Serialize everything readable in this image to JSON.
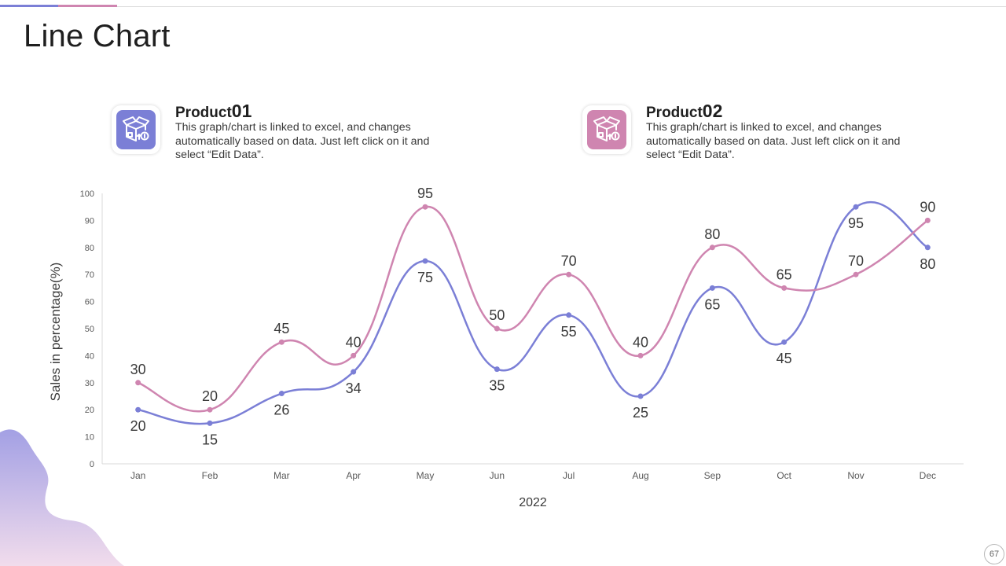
{
  "page": {
    "title": "Line Chart",
    "page_number": "67"
  },
  "products": [
    {
      "name": "Product",
      "number": "01",
      "color": "#7b7fd6",
      "icon": "box-money-icon",
      "description": "This graph/chart is linked to excel, and changes automatically based on data. Just left click on it and select “Edit Data”."
    },
    {
      "name": "Product",
      "number": "02",
      "color": "#cf85b0",
      "icon": "box-money-icon",
      "description": "This graph/chart is linked to excel, and changes automatically based on data. Just left click on it and select “Edit Data”."
    }
  ],
  "chart_data": {
    "type": "line",
    "title": "",
    "xlabel": "2022",
    "ylabel": "Sales in percentage(%)",
    "ylim": [
      0,
      100
    ],
    "yticks": [
      0,
      10,
      20,
      30,
      40,
      50,
      60,
      70,
      80,
      90,
      100
    ],
    "categories": [
      "Jan",
      "Feb",
      "Mar",
      "Apr",
      "May",
      "Jun",
      "Jul",
      "Aug",
      "Sep",
      "Oct",
      "Nov",
      "Dec"
    ],
    "smooth": true,
    "series": [
      {
        "name": "Product 01",
        "color": "#7b7fd6",
        "label_position": "below",
        "values": [
          20,
          15,
          26,
          34,
          75,
          35,
          55,
          25,
          65,
          45,
          95,
          80
        ]
      },
      {
        "name": "Product 02",
        "color": "#cf85b0",
        "label_position": "above",
        "values": [
          30,
          20,
          45,
          40,
          95,
          50,
          70,
          40,
          80,
          65,
          70,
          90
        ]
      }
    ]
  }
}
